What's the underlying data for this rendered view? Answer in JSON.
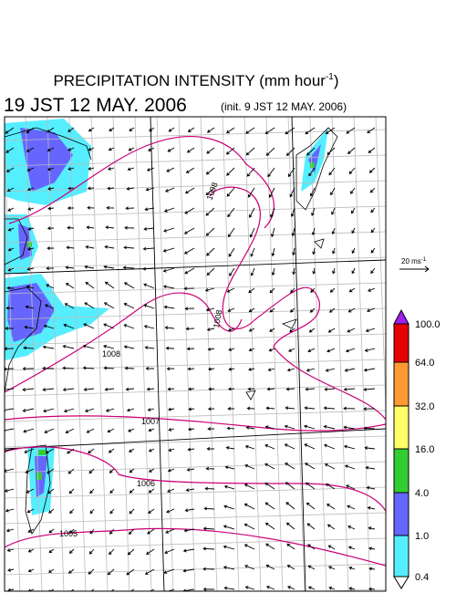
{
  "title": {
    "main": "PRECIPITATION INTENSITY (mm hour",
    "sup": "-1",
    "end": ")"
  },
  "subtitle": {
    "time": "19 JST 12 MAY. 2006",
    "init": "(init. 9 JST 12 MAY. 2006)"
  },
  "vector_scale": {
    "text": "20 ms",
    "sup": "-1"
  },
  "colorbar": {
    "colors": [
      "#a020f0",
      "#e60000",
      "#ff9933",
      "#ffff66",
      "#33cc33",
      "#6666ff",
      "#55eeff",
      "#ffffff"
    ],
    "labels": [
      "100.0",
      "64.0",
      "32.0",
      "16.0",
      "4.0",
      "1.0",
      "0.4"
    ]
  },
  "contour_labels": [
    "1008",
    "1008",
    "1008",
    "1007",
    "1006",
    "1005"
  ]
}
